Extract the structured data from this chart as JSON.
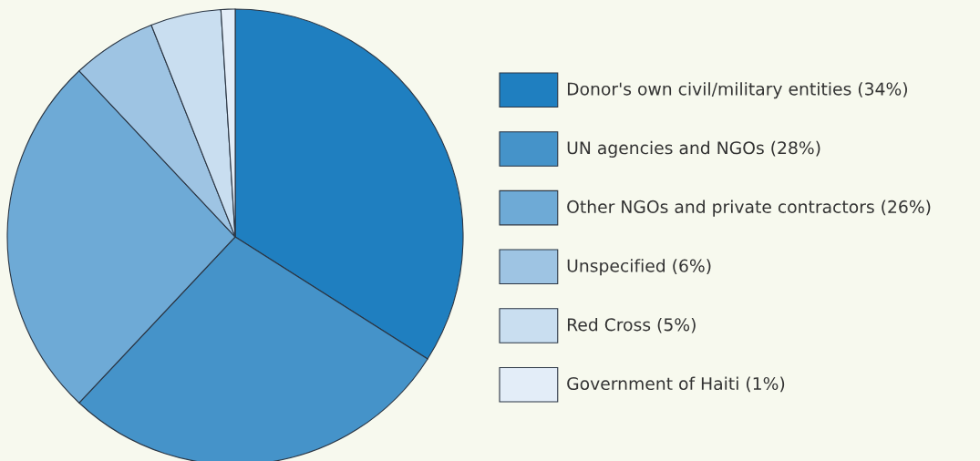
{
  "chart_data": {
    "type": "pie",
    "categories": [
      "Donor's own civil/military entities (34%)",
      "UN agencies and NGOs (28%)",
      "Other NGOs and private contractors (26%)",
      "Unspecified (6%)",
      "Red Cross (5%)",
      "Government of Haiti (1%)"
    ],
    "values": [
      34,
      28,
      26,
      6,
      5,
      1
    ],
    "colors": [
      "#1f7fc0",
      "#4593c9",
      "#6eaad6",
      "#9ec4e3",
      "#c9def0",
      "#e3edf8"
    ],
    "legend": "right"
  }
}
